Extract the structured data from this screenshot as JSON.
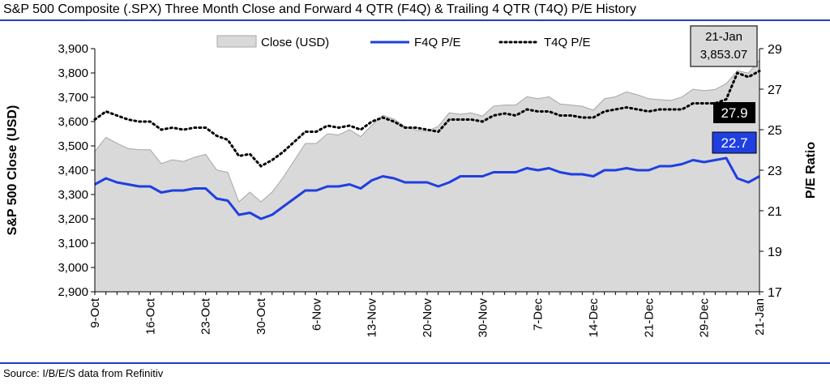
{
  "title": "S&P 500 Composite (.SPX) Three Month Close and Forward 4 QTR (F4Q) & Trailing 4 QTR (T4Q) P/E History",
  "source": "Source: I/B/E/S data from Refinitiv",
  "colors": {
    "rule": "#1f3fbf",
    "area_fill": "#d9d9d9",
    "area_stroke": "#a6a6a6",
    "f4q": "#1f3fe0",
    "t4q": "#000000"
  },
  "chart_data": {
    "type": "area",
    "legend_position": "top-center",
    "x_tick_labels": [
      "9-Oct",
      "16-Oct",
      "23-Oct",
      "30-Oct",
      "6-Nov",
      "13-Nov",
      "20-Nov",
      "30-Nov",
      "7-Dec",
      "14-Dec",
      "21-Dec",
      "29-Dec",
      "21-Jan"
    ],
    "x_tick_positions": [
      0,
      5,
      10,
      15,
      20,
      25,
      30,
      35,
      40,
      45,
      50,
      55,
      60
    ],
    "y_left": {
      "label": "S&P 500 Close (USD)",
      "min": 2900,
      "max": 3900,
      "ticks": [
        "2,900",
        "3,000",
        "3,100",
        "3,200",
        "3,300",
        "3,400",
        "3,500",
        "3,600",
        "3,700",
        "3,800",
        "3,900"
      ]
    },
    "y_right": {
      "label": "P/E Ratio",
      "min": 17,
      "max": 29,
      "ticks": [
        "17",
        "19",
        "21",
        "23",
        "25",
        "27",
        "29"
      ]
    },
    "series": [
      {
        "name": "Close (USD)",
        "axis": "left",
        "values": [
          3477,
          3535,
          3511,
          3489,
          3484,
          3484,
          3427,
          3443,
          3436,
          3453,
          3465,
          3401,
          3391,
          3270,
          3310,
          3270,
          3310,
          3370,
          3440,
          3510,
          3510,
          3550,
          3545,
          3567,
          3538,
          3585,
          3626,
          3610,
          3580,
          3565,
          3560,
          3580,
          3636,
          3630,
          3636,
          3622,
          3664,
          3668,
          3668,
          3702,
          3694,
          3702,
          3672,
          3668,
          3663,
          3647,
          3694,
          3702,
          3722,
          3710,
          3694,
          3690,
          3687,
          3701,
          3733,
          3727,
          3732,
          3756,
          3809,
          3799,
          3853
        ]
      },
      {
        "name": "F4Q P/E",
        "axis": "right",
        "values": [
          22.3,
          22.6,
          22.4,
          22.3,
          22.2,
          22.2,
          21.9,
          22.0,
          22.0,
          22.1,
          22.1,
          21.6,
          21.5,
          20.8,
          20.9,
          20.6,
          20.8,
          21.2,
          21.6,
          22.0,
          22.0,
          22.2,
          22.2,
          22.3,
          22.1,
          22.5,
          22.7,
          22.6,
          22.4,
          22.4,
          22.4,
          22.2,
          22.4,
          22.7,
          22.7,
          22.7,
          22.9,
          22.9,
          22.9,
          23.1,
          23.0,
          23.1,
          22.9,
          22.8,
          22.8,
          22.7,
          23.0,
          23.0,
          23.1,
          23.0,
          23.0,
          23.2,
          23.2,
          23.3,
          23.5,
          23.4,
          23.5,
          23.6,
          22.6,
          22.4,
          22.7
        ]
      },
      {
        "name": "T4Q P/E",
        "axis": "right",
        "values": [
          25.5,
          25.9,
          25.7,
          25.5,
          25.4,
          25.4,
          25.0,
          25.1,
          25.0,
          25.1,
          25.1,
          24.7,
          24.5,
          23.7,
          23.8,
          23.2,
          23.5,
          23.9,
          24.4,
          24.9,
          24.9,
          25.2,
          25.1,
          25.2,
          25.0,
          25.4,
          25.6,
          25.4,
          25.1,
          25.1,
          25.0,
          24.9,
          25.5,
          25.5,
          25.5,
          25.4,
          25.7,
          25.8,
          25.7,
          26.0,
          25.9,
          25.9,
          25.7,
          25.7,
          25.6,
          25.6,
          25.9,
          26.0,
          26.1,
          26.0,
          25.9,
          26.0,
          26.0,
          26.0,
          26.3,
          26.3,
          26.3,
          26.5,
          27.8,
          27.6,
          27.9
        ]
      }
    ],
    "annotations": [
      {
        "text_line1": "21-Jan",
        "text_line2": "3,853.07",
        "series": "Close (USD)"
      },
      {
        "text": "27.9",
        "series": "T4Q P/E"
      },
      {
        "text": "22.7",
        "series": "F4Q P/E"
      }
    ]
  }
}
